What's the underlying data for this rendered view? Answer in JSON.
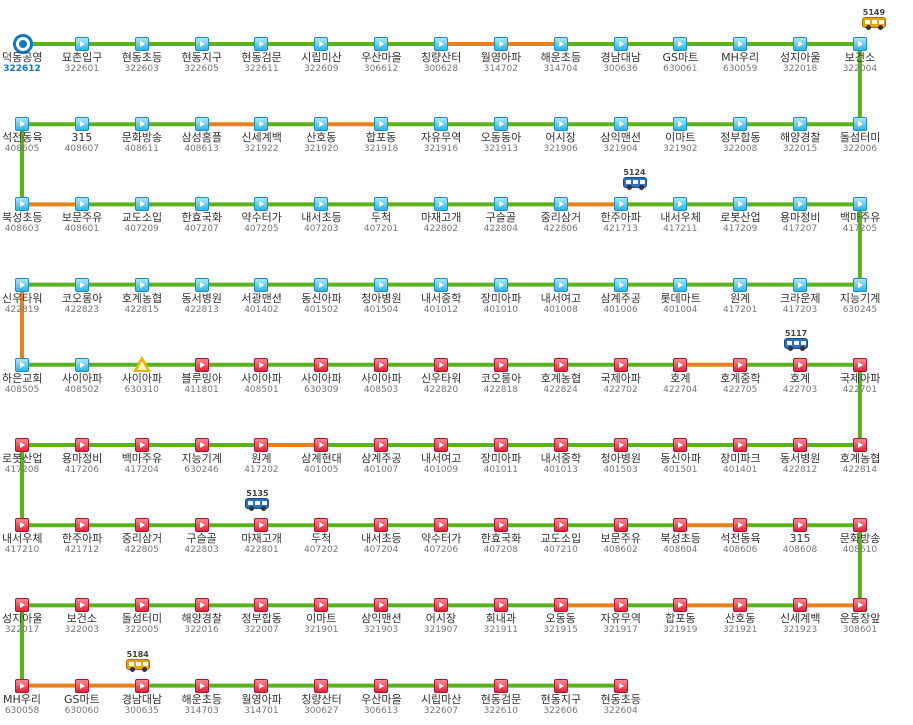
{
  "colors": {
    "green": "#5cb21d",
    "orange": "#e5821f",
    "highlight_id": "#0b78c9"
  },
  "rows": [
    {
      "segments": [
        "green",
        "green",
        "green",
        "green",
        "green",
        "green",
        "green",
        "orange",
        "orange",
        "green",
        "green",
        "green",
        "green",
        "green"
      ],
      "stops": [
        {
          "name": "덕동공영",
          "id": "322612",
          "icon": "start-icon"
        },
        {
          "name": "묘촌입구",
          "id": "322601",
          "icon": "blue"
        },
        {
          "name": "현동초등",
          "id": "322603",
          "icon": "blue"
        },
        {
          "name": "현동지구",
          "id": "322605",
          "icon": "blue"
        },
        {
          "name": "현동검문",
          "id": "322611",
          "icon": "blue"
        },
        {
          "name": "시립미산",
          "id": "322609",
          "icon": "blue"
        },
        {
          "name": "우산마을",
          "id": "306612",
          "icon": "blue"
        },
        {
          "name": "칭량산터",
          "id": "300628",
          "icon": "blue"
        },
        {
          "name": "월영아파",
          "id": "314702",
          "icon": "blue"
        },
        {
          "name": "해운초등",
          "id": "314704",
          "icon": "blue"
        },
        {
          "name": "경남대남",
          "id": "300636",
          "icon": "blue"
        },
        {
          "name": "GS마트",
          "id": "630061",
          "icon": "blue"
        },
        {
          "name": "MH우리",
          "id": "630059",
          "icon": "blue"
        },
        {
          "name": "성지아울",
          "id": "322018",
          "icon": "blue"
        },
        {
          "name": "보건소",
          "id": "322004",
          "icon": "blue"
        }
      ]
    },
    {
      "segments": [
        "green",
        "green",
        "green",
        "orange",
        "green",
        "orange",
        "green",
        "green",
        "green",
        "green",
        "green",
        "green",
        "green",
        "green"
      ],
      "stops": [
        {
          "name": "석전동육",
          "id": "408605",
          "icon": "blue"
        },
        {
          "name": "315",
          "id": "408607",
          "icon": "blue"
        },
        {
          "name": "문화방송",
          "id": "408611",
          "icon": "blue"
        },
        {
          "name": "삼성홈플",
          "id": "408613",
          "icon": "blue"
        },
        {
          "name": "신세계백",
          "id": "321922",
          "icon": "blue"
        },
        {
          "name": "산호동",
          "id": "321920",
          "icon": "blue"
        },
        {
          "name": "합포동",
          "id": "321918",
          "icon": "blue"
        },
        {
          "name": "자유무역",
          "id": "321916",
          "icon": "blue"
        },
        {
          "name": "오동동아",
          "id": "321913",
          "icon": "blue"
        },
        {
          "name": "어시장",
          "id": "321906",
          "icon": "blue"
        },
        {
          "name": "삼익맨션",
          "id": "321904",
          "icon": "blue"
        },
        {
          "name": "이마트",
          "id": "321902",
          "icon": "blue"
        },
        {
          "name": "정부합동",
          "id": "322008",
          "icon": "blue"
        },
        {
          "name": "해양경찰",
          "id": "322015",
          "icon": "blue"
        },
        {
          "name": "돌섬터미",
          "id": "322006",
          "icon": "blue"
        }
      ]
    },
    {
      "segments": [
        "orange",
        "green",
        "green",
        "green",
        "green",
        "green",
        "green",
        "green",
        "green",
        "orange",
        "green",
        "green",
        "green",
        "green"
      ],
      "stops": [
        {
          "name": "북성초등",
          "id": "408603",
          "icon": "blue"
        },
        {
          "name": "보문주유",
          "id": "408601",
          "icon": "blue"
        },
        {
          "name": "교도소입",
          "id": "407209",
          "icon": "blue"
        },
        {
          "name": "한효국화",
          "id": "407207",
          "icon": "blue"
        },
        {
          "name": "약수터가",
          "id": "407205",
          "icon": "blue"
        },
        {
          "name": "내서초등",
          "id": "407203",
          "icon": "blue"
        },
        {
          "name": "두척",
          "id": "407201",
          "icon": "blue"
        },
        {
          "name": "마재고개",
          "id": "422802",
          "icon": "blue"
        },
        {
          "name": "구슬골",
          "id": "422804",
          "icon": "blue"
        },
        {
          "name": "중리삼거",
          "id": "422806",
          "icon": "blue"
        },
        {
          "name": "한주아파",
          "id": "421713",
          "icon": "blue"
        },
        {
          "name": "내서우체",
          "id": "417211",
          "icon": "blue"
        },
        {
          "name": "로봇산업",
          "id": "417209",
          "icon": "blue"
        },
        {
          "name": "용마정비",
          "id": "417207",
          "icon": "blue"
        },
        {
          "name": "백마주유",
          "id": "417205",
          "icon": "blue"
        }
      ]
    },
    {
      "segments": [
        "green",
        "green",
        "green",
        "green",
        "green",
        "green",
        "green",
        "green",
        "green",
        "green",
        "green",
        "green",
        "green",
        "green"
      ],
      "stops": [
        {
          "name": "신우타워",
          "id": "422819",
          "icon": "blue"
        },
        {
          "name": "코오롱아",
          "id": "422823",
          "icon": "blue"
        },
        {
          "name": "호계농협",
          "id": "422815",
          "icon": "blue"
        },
        {
          "name": "동서병원",
          "id": "422813",
          "icon": "blue"
        },
        {
          "name": "서광맨션",
          "id": "401402",
          "icon": "blue"
        },
        {
          "name": "동신아파",
          "id": "401502",
          "icon": "blue"
        },
        {
          "name": "청아병원",
          "id": "401504",
          "icon": "blue"
        },
        {
          "name": "내서중학",
          "id": "401012",
          "icon": "blue"
        },
        {
          "name": "장미아파",
          "id": "401010",
          "icon": "blue"
        },
        {
          "name": "내서여고",
          "id": "401008",
          "icon": "blue"
        },
        {
          "name": "삼계주공",
          "id": "401006",
          "icon": "blue"
        },
        {
          "name": "롯데마트",
          "id": "401004",
          "icon": "blue"
        },
        {
          "name": "원계",
          "id": "417201",
          "icon": "blue"
        },
        {
          "name": "크라운제",
          "id": "417203",
          "icon": "blue"
        },
        {
          "name": "지능기계",
          "id": "630245",
          "icon": "blue"
        }
      ]
    },
    {
      "segments": [
        "green",
        "green",
        "green",
        "green",
        "green",
        "green",
        "green",
        "green",
        "green",
        "green",
        "green",
        "orange",
        "green",
        "green"
      ],
      "stops": [
        {
          "name": "하은교회",
          "id": "408505",
          "icon": "blue"
        },
        {
          "name": "사이아파",
          "id": "408502",
          "icon": "blue"
        },
        {
          "name": "사이아파",
          "id": "630310",
          "icon": "turn"
        },
        {
          "name": "블루밍아",
          "id": "411801",
          "icon": "red"
        },
        {
          "name": "사이아파",
          "id": "408501",
          "icon": "red"
        },
        {
          "name": "사이아파",
          "id": "630309",
          "icon": "red"
        },
        {
          "name": "사이아파",
          "id": "408503",
          "icon": "red"
        },
        {
          "name": "신우타워",
          "id": "422820",
          "icon": "red"
        },
        {
          "name": "코오롱아",
          "id": "422818",
          "icon": "red"
        },
        {
          "name": "호계농협",
          "id": "422824",
          "icon": "red"
        },
        {
          "name": "국제아파",
          "id": "422702",
          "icon": "red"
        },
        {
          "name": "호계",
          "id": "422704",
          "icon": "red"
        },
        {
          "name": "호계중학",
          "id": "422705",
          "icon": "red"
        },
        {
          "name": "호계",
          "id": "422703",
          "icon": "red"
        },
        {
          "name": "국제아파",
          "id": "422701",
          "icon": "red"
        }
      ]
    },
    {
      "segments": [
        "green",
        "green",
        "green",
        "green",
        "orange",
        "green",
        "green",
        "green",
        "green",
        "green",
        "green",
        "green",
        "green",
        "green"
      ],
      "stops": [
        {
          "name": "로봇산업",
          "id": "417208",
          "icon": "red"
        },
        {
          "name": "용마정비",
          "id": "417206",
          "icon": "red"
        },
        {
          "name": "백마주유",
          "id": "417204",
          "icon": "red"
        },
        {
          "name": "지능기계",
          "id": "630246",
          "icon": "red"
        },
        {
          "name": "원계",
          "id": "417202",
          "icon": "red"
        },
        {
          "name": "삼계현대",
          "id": "401005",
          "icon": "red"
        },
        {
          "name": "삼계주공",
          "id": "401007",
          "icon": "red"
        },
        {
          "name": "내서여고",
          "id": "401009",
          "icon": "red"
        },
        {
          "name": "장미아파",
          "id": "401011",
          "icon": "red"
        },
        {
          "name": "내서중학",
          "id": "401013",
          "icon": "red"
        },
        {
          "name": "청아병원",
          "id": "401503",
          "icon": "red"
        },
        {
          "name": "동신아파",
          "id": "401501",
          "icon": "red"
        },
        {
          "name": "장미파크",
          "id": "401401",
          "icon": "red"
        },
        {
          "name": "동서병원",
          "id": "422812",
          "icon": "red"
        },
        {
          "name": "호계농협",
          "id": "422814",
          "icon": "red"
        }
      ]
    },
    {
      "segments": [
        "green",
        "green",
        "green",
        "green",
        "green",
        "green",
        "green",
        "green",
        "green",
        "green",
        "green",
        "orange",
        "green",
        "green"
      ],
      "stops": [
        {
          "name": "내서우체",
          "id": "417210",
          "icon": "red"
        },
        {
          "name": "한주아파",
          "id": "421712",
          "icon": "red"
        },
        {
          "name": "중리삼거",
          "id": "422805",
          "icon": "red"
        },
        {
          "name": "구슬골",
          "id": "422803",
          "icon": "red"
        },
        {
          "name": "마재고개",
          "id": "422801",
          "icon": "red"
        },
        {
          "name": "두척",
          "id": "407202",
          "icon": "red"
        },
        {
          "name": "내서초등",
          "id": "407204",
          "icon": "red"
        },
        {
          "name": "약수터가",
          "id": "407206",
          "icon": "red"
        },
        {
          "name": "한효국화",
          "id": "407208",
          "icon": "red"
        },
        {
          "name": "교도소입",
          "id": "407210",
          "icon": "red"
        },
        {
          "name": "보문주유",
          "id": "408602",
          "icon": "red"
        },
        {
          "name": "북성초등",
          "id": "408604",
          "icon": "red"
        },
        {
          "name": "석전동육",
          "id": "408606",
          "icon": "red"
        },
        {
          "name": "315",
          "id": "408608",
          "icon": "red"
        },
        {
          "name": "문화방송",
          "id": "408610",
          "icon": "red"
        }
      ]
    },
    {
      "segments": [
        "green",
        "green",
        "green",
        "green",
        "green",
        "green",
        "green",
        "green",
        "green",
        "orange",
        "green",
        "orange",
        "green",
        "orange"
      ],
      "stops": [
        {
          "name": "성지아울",
          "id": "322017",
          "icon": "red"
        },
        {
          "name": "보건소",
          "id": "322003",
          "icon": "red"
        },
        {
          "name": "돌섬터미",
          "id": "322005",
          "icon": "red"
        },
        {
          "name": "해양경찰",
          "id": "322016",
          "icon": "red"
        },
        {
          "name": "정부합동",
          "id": "322007",
          "icon": "red"
        },
        {
          "name": "이마트",
          "id": "321901",
          "icon": "red"
        },
        {
          "name": "삼익맨션",
          "id": "321903",
          "icon": "red"
        },
        {
          "name": "어시장",
          "id": "321907",
          "icon": "red"
        },
        {
          "name": "회내과",
          "id": "321911",
          "icon": "red"
        },
        {
          "name": "오동동",
          "id": "321915",
          "icon": "red"
        },
        {
          "name": "자유무역",
          "id": "321917",
          "icon": "red"
        },
        {
          "name": "합포동",
          "id": "321919",
          "icon": "red"
        },
        {
          "name": "산호동",
          "id": "321921",
          "icon": "red"
        },
        {
          "name": "신세계백",
          "id": "321923",
          "icon": "red"
        },
        {
          "name": "운동장앞",
          "id": "308601",
          "icon": "red"
        }
      ]
    },
    {
      "segments": [
        "orange",
        "orange",
        "green",
        "green",
        "green",
        "green",
        "green",
        "green",
        "green",
        "green"
      ],
      "stops": [
        {
          "name": "MH우리",
          "id": "630058",
          "icon": "red"
        },
        {
          "name": "GS마트",
          "id": "630060",
          "icon": "red"
        },
        {
          "name": "경남대남",
          "id": "300635",
          "icon": "red"
        },
        {
          "name": "해운초등",
          "id": "314703",
          "icon": "red"
        },
        {
          "name": "월영아파",
          "id": "314701",
          "icon": "red"
        },
        {
          "name": "칭량산터",
          "id": "300627",
          "icon": "red"
        },
        {
          "name": "우산마을",
          "id": "306613",
          "icon": "red"
        },
        {
          "name": "시립마산",
          "id": "322607",
          "icon": "red"
        },
        {
          "name": "현동검문",
          "id": "322610",
          "icon": "red"
        },
        {
          "name": "현동지구",
          "id": "322606",
          "icon": "red"
        },
        {
          "name": "현동초등",
          "id": "322604",
          "icon": "red"
        }
      ]
    }
  ],
  "connectors": [
    {
      "side": "right",
      "from_row": 0,
      "color": "green"
    },
    {
      "side": "left",
      "from_row": 1,
      "color": "green"
    },
    {
      "side": "right",
      "from_row": 2,
      "color": "green"
    },
    {
      "side": "left",
      "from_row": 3,
      "color": "orange"
    },
    {
      "side": "right",
      "from_row": 4,
      "color": "green"
    },
    {
      "side": "left",
      "from_row": 5,
      "color": "green"
    },
    {
      "side": "right",
      "from_row": 6,
      "color": "green"
    },
    {
      "side": "left",
      "from_row": 7,
      "color": "green"
    }
  ],
  "buses": [
    {
      "number": "5149",
      "color": "yellow",
      "row": 0,
      "col": 14
    },
    {
      "number": "5124",
      "color": "blue",
      "row": 2,
      "col": 10
    },
    {
      "number": "5117",
      "color": "blue",
      "row": 4,
      "col": 12.7
    },
    {
      "number": "5135",
      "color": "blue",
      "row": 6,
      "col": 3.7
    },
    {
      "number": "5184",
      "color": "yellow",
      "row": 8,
      "col": 1.7
    }
  ]
}
